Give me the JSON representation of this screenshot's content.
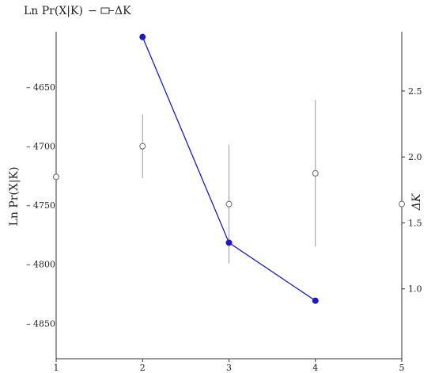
{
  "chart_data": {
    "type": "line",
    "title": "",
    "x": [
      1,
      2,
      3,
      4,
      5
    ],
    "xticks": [
      "1",
      "2",
      "3",
      "4",
      "5"
    ],
    "xlim": [
      1,
      5
    ],
    "legend": {
      "placement": "top-left",
      "entries": [
        "Ln Pr(X|K)",
        "ΔK"
      ],
      "separator": "−"
    },
    "left_axis": {
      "label": "Ln Pr(X|K)",
      "ticks": [
        -4650,
        -4700,
        -4750,
        -4800,
        -4850
      ],
      "tick_labels": [
        "– 4650",
        "– 4700",
        "– 4750",
        "– 4800",
        "– 4850"
      ],
      "ylim": [
        -4880,
        -4603
      ]
    },
    "right_axis": {
      "label": "ΔK",
      "ticks": [
        1.0,
        1.5,
        2.0,
        2.5
      ],
      "tick_labels": [
        "1.0",
        "1.5",
        "2.0",
        "2.5"
      ],
      "ylim": [
        0.47,
        2.95
      ]
    },
    "series": [
      {
        "name": "Ln Pr(X|K)",
        "axis": "left",
        "marker": "open-circle",
        "color": "#666666",
        "errorbar_color": "#9a9a9a",
        "points": [
          {
            "x": 1,
            "y": -4726,
            "err": 0
          },
          {
            "x": 2,
            "y": -4700,
            "err": 27
          },
          {
            "x": 3,
            "y": -4749,
            "err": 50
          },
          {
            "x": 4,
            "y": -4723,
            "err": 62
          },
          {
            "x": 5,
            "y": -4749,
            "err": 0
          }
        ]
      },
      {
        "name": "ΔK",
        "axis": "right",
        "marker": "filled-circle",
        "color": "#1a1acc",
        "points": [
          {
            "x": 2,
            "y": 2.91
          },
          {
            "x": 3,
            "y": 1.35
          },
          {
            "x": 4,
            "y": 0.91
          }
        ]
      }
    ],
    "grid": false
  }
}
